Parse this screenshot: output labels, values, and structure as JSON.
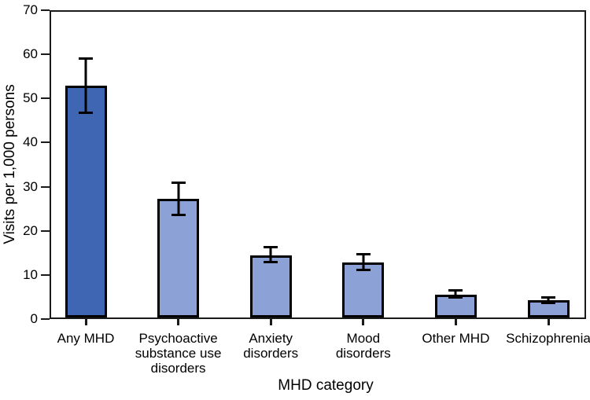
{
  "figure": {
    "background": "#ffffff"
  },
  "chart_data": {
    "type": "bar",
    "xlabel": "MHD category",
    "ylabel": "Visits per 1,000 persons",
    "ylim": [
      0,
      70
    ],
    "yticks": [
      0,
      10,
      20,
      30,
      40,
      50,
      60,
      70
    ],
    "grid": false,
    "frame": "full-box",
    "categories": [
      "Any MHD",
      "Psychoactive\nsubstance use\ndisorders",
      "Anxiety\ndisorders",
      "Mood\ndisorders",
      "Other MHD",
      "Schizophrenia"
    ],
    "values": [
      53.0,
      27.2,
      14.3,
      12.6,
      5.3,
      4.0
    ],
    "error_low": [
      46.6,
      23.2,
      12.5,
      10.7,
      4.3,
      3.1
    ],
    "error_high": [
      59.5,
      31.1,
      16.3,
      14.7,
      6.4,
      4.9
    ],
    "colors": {
      "bar_fill": [
        "#3F66B3",
        "#8CA1D5",
        "#8CA1D5",
        "#8CA1D5",
        "#8CA1D5",
        "#8CA1D5"
      ],
      "bar_border": "#000000",
      "error_bar": "#000000",
      "axis": "#1a1a1a",
      "text": "#000000"
    }
  }
}
